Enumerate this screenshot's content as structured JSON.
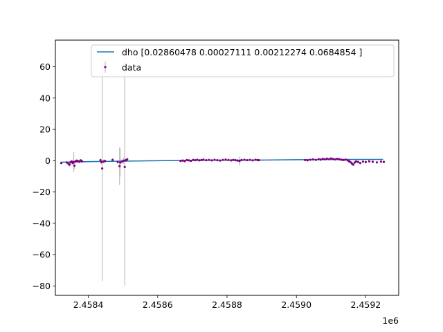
{
  "chart_data": {
    "type": "scatter",
    "title": "",
    "xlabel": "",
    "ylabel": "",
    "x_offset_label": "1e6",
    "xlim": [
      2458305,
      2459295
    ],
    "ylim": [
      -86,
      77
    ],
    "grid": false,
    "legend_placement": "top-right",
    "colors": {
      "model_line": "#1f77b4",
      "data_points": "#800080",
      "error_bars": "#bfbfbf"
    },
    "x_ticks": [
      {
        "value": 2458400,
        "label": "2.4584"
      },
      {
        "value": 2458600,
        "label": "2.4586"
      },
      {
        "value": 2458800,
        "label": "2.4588"
      },
      {
        "value": 2459000,
        "label": "2.4590"
      },
      {
        "value": 2459200,
        "label": "2.4592"
      }
    ],
    "y_ticks": [
      {
        "value": 60,
        "label": "60"
      },
      {
        "value": 40,
        "label": "40"
      },
      {
        "value": 20,
        "label": "20"
      },
      {
        "value": 0,
        "label": "0"
      },
      {
        "value": -20,
        "label": "−20"
      },
      {
        "value": -40,
        "label": "−40"
      },
      {
        "value": -60,
        "label": "−60"
      },
      {
        "value": -80,
        "label": "−80"
      }
    ],
    "series": [
      {
        "name": "dho [0.02860478 0.00027111 0.00212274 0.0684854 ]",
        "kind": "line",
        "points": [
          [
            2458320,
            -1.0
          ],
          [
            2458400,
            -0.6
          ],
          [
            2458500,
            -0.3
          ],
          [
            2458600,
            0.0
          ],
          [
            2458700,
            0.2
          ],
          [
            2458800,
            0.3
          ],
          [
            2458900,
            0.4
          ],
          [
            2459000,
            0.6
          ],
          [
            2459100,
            0.7
          ],
          [
            2459200,
            0.8
          ],
          [
            2459250,
            0.8
          ]
        ]
      },
      {
        "name": "data",
        "kind": "errorbar",
        "points": [
          [
            2458322,
            -1.5,
            0.8
          ],
          [
            2458338,
            -1.2,
            1.0
          ],
          [
            2458343,
            -2.0,
            1.5
          ],
          [
            2458346,
            -2.5,
            1.2
          ],
          [
            2458349,
            -1.0,
            0.8
          ],
          [
            2458352,
            -0.5,
            0.9
          ],
          [
            2458355,
            -1.5,
            1.1
          ],
          [
            2458358,
            -0.8,
            6.5
          ],
          [
            2458360,
            -3.2,
            2.0
          ],
          [
            2458363,
            -0.5,
            1.0
          ],
          [
            2458366,
            0.0,
            0.9
          ],
          [
            2458370,
            -0.3,
            1.0
          ],
          [
            2458374,
            -0.6,
            1.2
          ],
          [
            2458378,
            0.2,
            0.8
          ],
          [
            2458382,
            -0.4,
            1.0
          ],
          [
            2458435,
            0.3,
            1.0
          ],
          [
            2458438,
            -1.0,
            1.2
          ],
          [
            2458440,
            -5.0,
            72.0
          ],
          [
            2458444,
            -0.5,
            1.2
          ],
          [
            2458448,
            -0.2,
            1.0
          ],
          [
            2458470,
            0.5,
            1.0
          ],
          [
            2458485,
            -0.8,
            1.2
          ],
          [
            2458490,
            -3.5,
            12.0
          ],
          [
            2458492,
            -1.2,
            9.0
          ],
          [
            2458497,
            -0.5,
            1.5
          ],
          [
            2458502,
            0.0,
            2.0
          ],
          [
            2458505,
            -4.0,
            76.0
          ],
          [
            2458508,
            0.3,
            1.0
          ],
          [
            2458512,
            0.8,
            1.0
          ],
          [
            2458666,
            -0.2,
            0.7
          ],
          [
            2458672,
            0.1,
            0.7
          ],
          [
            2458678,
            -0.3,
            0.7
          ],
          [
            2458684,
            0.4,
            0.6
          ],
          [
            2458690,
            0.2,
            0.6
          ],
          [
            2458696,
            -0.1,
            0.6
          ],
          [
            2458702,
            0.5,
            0.6
          ],
          [
            2458708,
            0.3,
            0.6
          ],
          [
            2458714,
            0.6,
            0.6
          ],
          [
            2458720,
            0.2,
            0.6
          ],
          [
            2458726,
            0.4,
            0.6
          ],
          [
            2458732,
            0.7,
            0.6
          ],
          [
            2458740,
            0.3,
            0.6
          ],
          [
            2458748,
            0.5,
            0.6
          ],
          [
            2458756,
            0.2,
            0.6
          ],
          [
            2458764,
            0.6,
            0.6
          ],
          [
            2458772,
            0.3,
            0.6
          ],
          [
            2458780,
            0.1,
            0.6
          ],
          [
            2458788,
            0.5,
            0.6
          ],
          [
            2458796,
            0.7,
            0.6
          ],
          [
            2458804,
            0.4,
            0.6
          ],
          [
            2458812,
            0.2,
            0.6
          ],
          [
            2458818,
            0.5,
            0.6
          ],
          [
            2458824,
            0.3,
            0.6
          ],
          [
            2458830,
            0.1,
            0.6
          ],
          [
            2458836,
            -0.2,
            3.0
          ],
          [
            2458842,
            0.4,
            0.6
          ],
          [
            2458850,
            0.6,
            0.6
          ],
          [
            2458858,
            0.3,
            0.6
          ],
          [
            2458866,
            0.5,
            0.6
          ],
          [
            2458874,
            0.2,
            0.6
          ],
          [
            2458882,
            0.6,
            0.6
          ],
          [
            2458888,
            0.4,
            0.6
          ],
          [
            2458892,
            0.3,
            0.6
          ],
          [
            2459025,
            0.4,
            0.6
          ],
          [
            2459032,
            0.2,
            0.6
          ],
          [
            2459040,
            0.6,
            0.6
          ],
          [
            2459048,
            0.8,
            0.6
          ],
          [
            2459056,
            0.5,
            0.6
          ],
          [
            2459064,
            1.0,
            0.6
          ],
          [
            2459070,
            0.7,
            0.6
          ],
          [
            2459076,
            1.2,
            0.6
          ],
          [
            2459082,
            0.9,
            0.6
          ],
          [
            2459088,
            1.3,
            0.6
          ],
          [
            2459094,
            1.0,
            0.6
          ],
          [
            2459100,
            1.4,
            0.6
          ],
          [
            2459106,
            1.1,
            0.6
          ],
          [
            2459112,
            0.8,
            0.6
          ],
          [
            2459118,
            1.2,
            0.6
          ],
          [
            2459124,
            0.9,
            0.6
          ],
          [
            2459130,
            0.6,
            0.6
          ],
          [
            2459136,
            0.4,
            0.6
          ],
          [
            2459142,
            0.7,
            0.6
          ],
          [
            2459148,
            0.2,
            0.6
          ],
          [
            2459152,
            -0.3,
            0.8
          ],
          [
            2459156,
            -1.0,
            0.8
          ],
          [
            2459160,
            -1.8,
            1.0
          ],
          [
            2459164,
            -2.5,
            1.0
          ],
          [
            2459168,
            -1.2,
            0.8
          ],
          [
            2459172,
            -0.5,
            0.8
          ],
          [
            2459178,
            -0.8,
            0.8
          ],
          [
            2459184,
            -1.5,
            0.9
          ],
          [
            2459192,
            -0.6,
            0.8
          ],
          [
            2459200,
            -0.9,
            0.8
          ],
          [
            2459210,
            -0.4,
            0.7
          ],
          [
            2459220,
            -0.7,
            0.7
          ],
          [
            2459232,
            -1.1,
            0.7
          ],
          [
            2459244,
            -0.6,
            0.7
          ],
          [
            2459252,
            -0.8,
            0.7
          ]
        ]
      }
    ]
  }
}
